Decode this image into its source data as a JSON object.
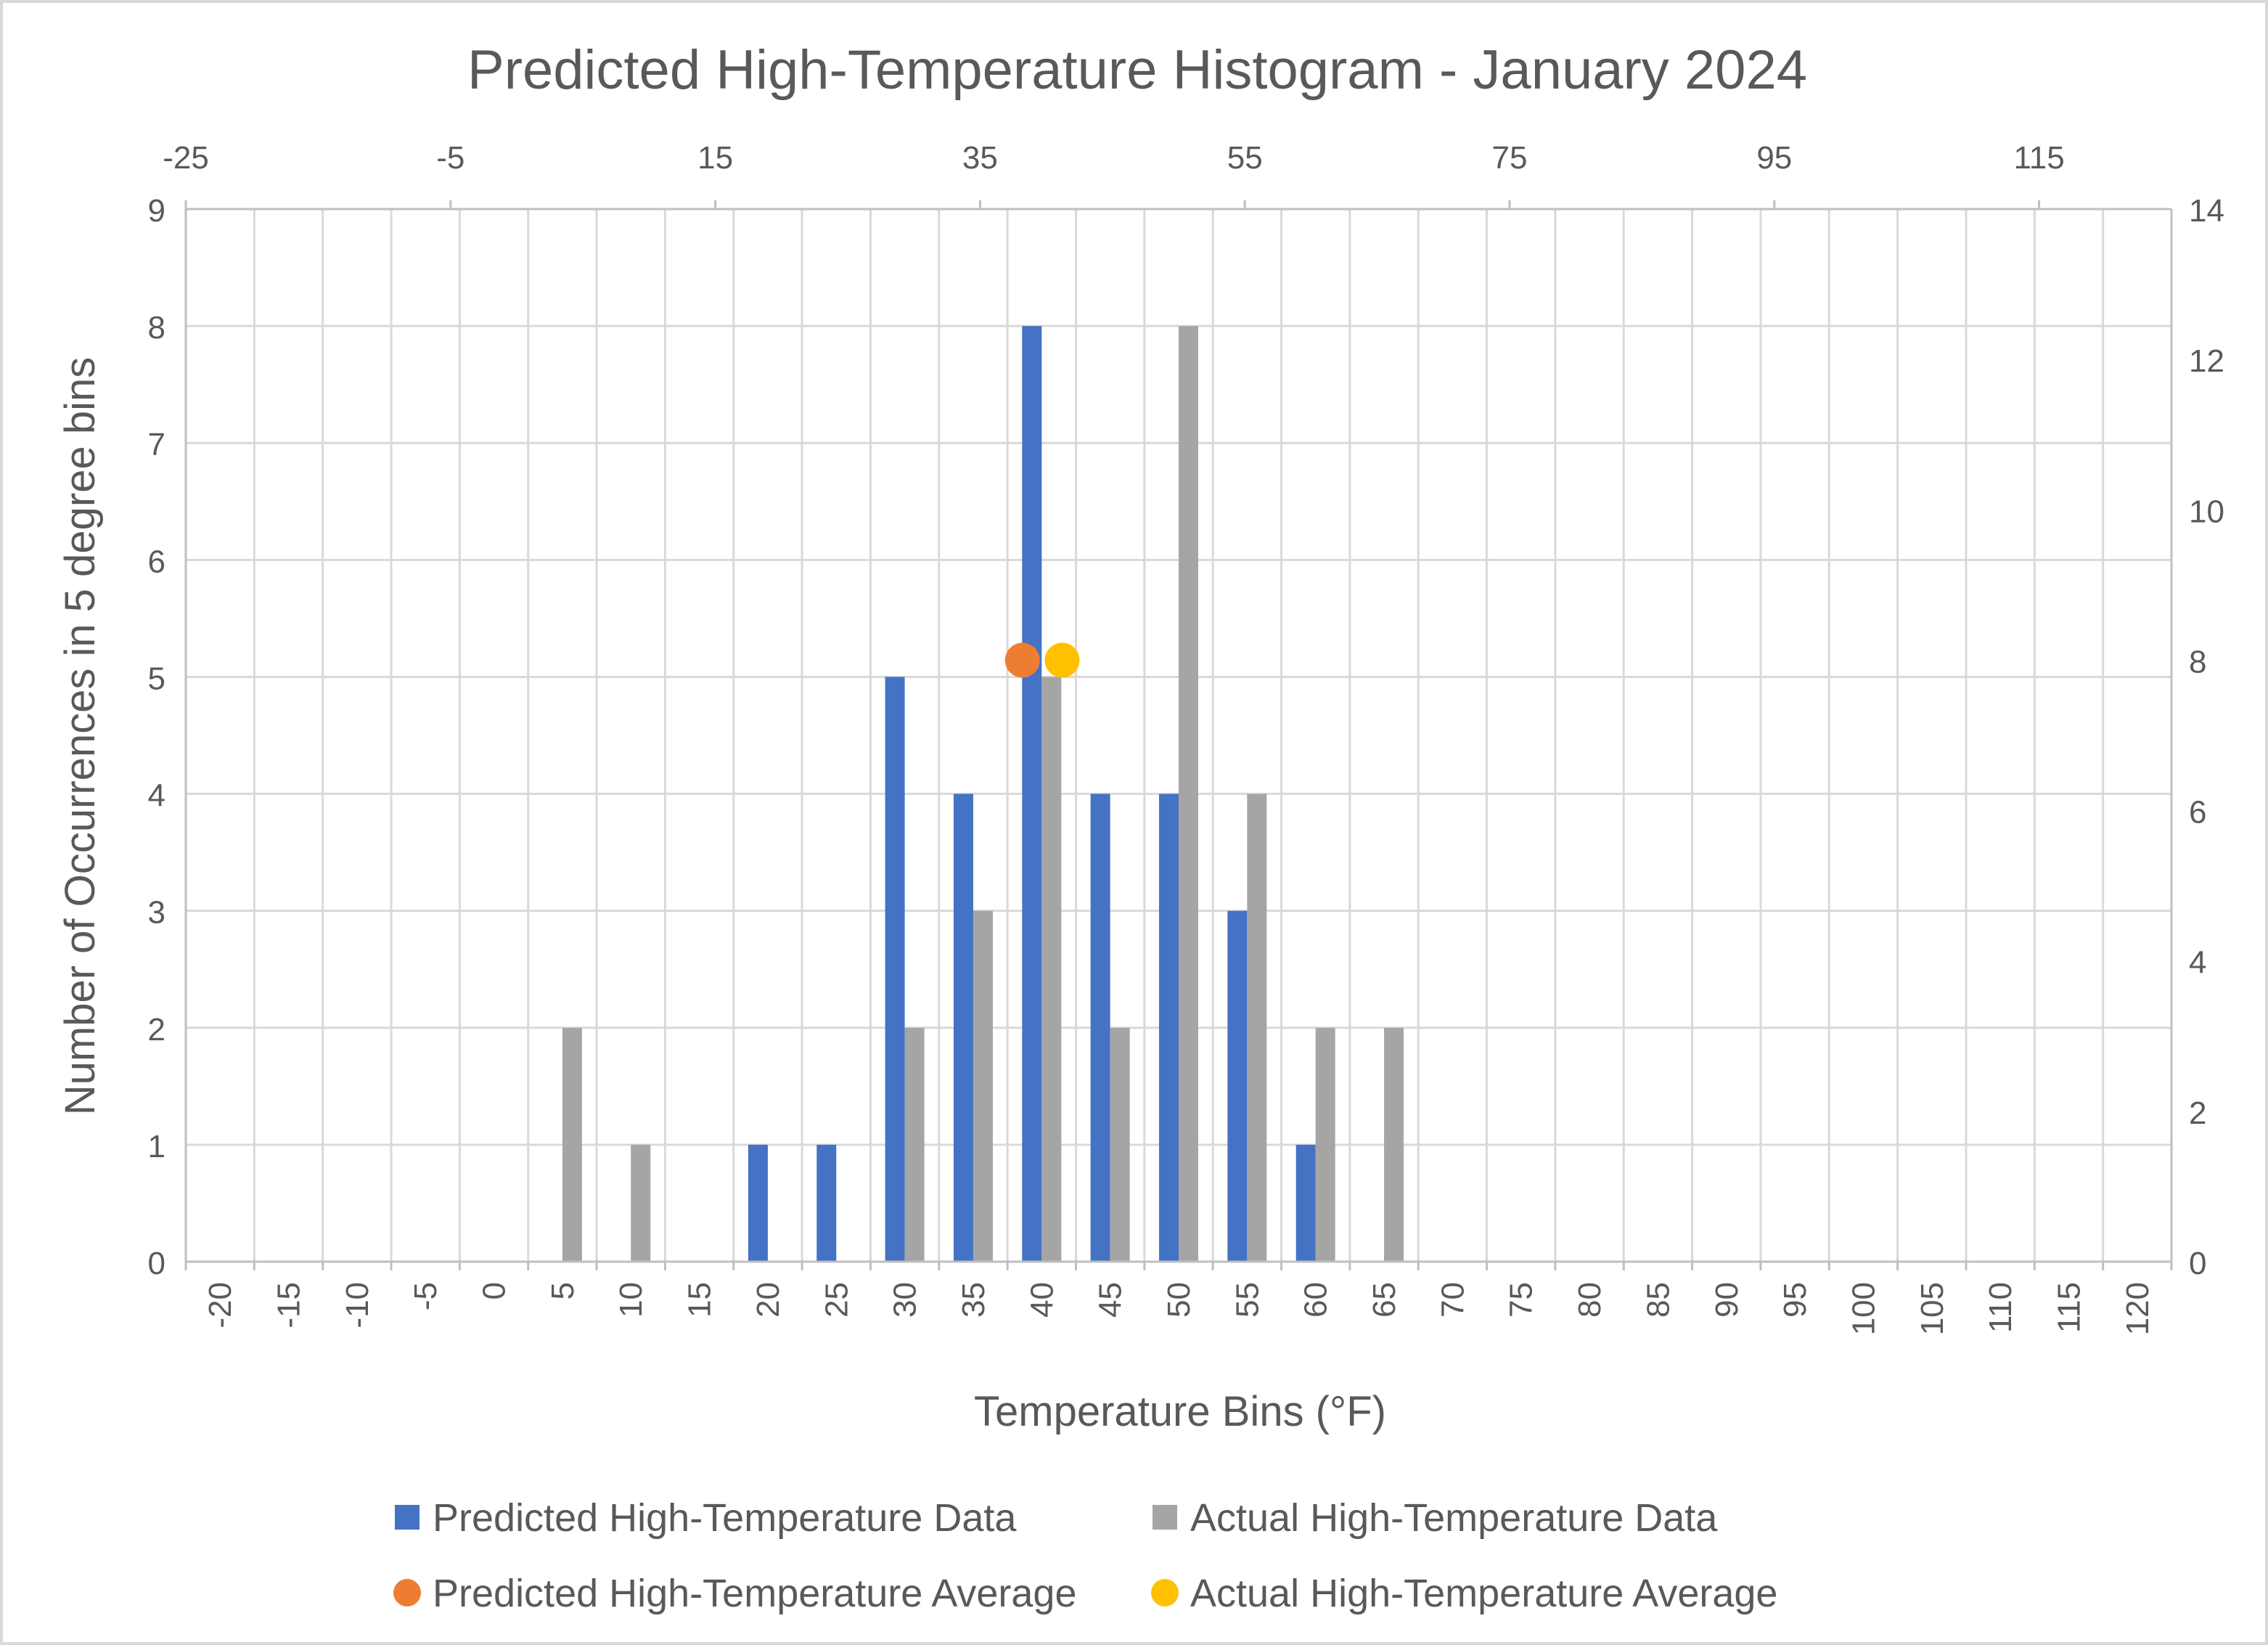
{
  "chart_data": {
    "type": "bar",
    "title": "Predicted High-Temperature Histogram - January 2024",
    "xlabel": "Temperature Bins (°F)",
    "ylabel": "Number of Occurrences in 5 degree bins",
    "categories": [
      "-20",
      "-15",
      "-10",
      "-5",
      "0",
      "5",
      "10",
      "15",
      "20",
      "25",
      "30",
      "35",
      "40",
      "45",
      "50",
      "55",
      "60",
      "65",
      "70",
      "75",
      "80",
      "85",
      "90",
      "95",
      "100",
      "105",
      "110",
      "115",
      "120"
    ],
    "series": [
      {
        "name": "Predicted High-Temperature Data",
        "color": "#4472c4",
        "values": [
          0,
          0,
          0,
          0,
          0,
          0,
          0,
          0,
          1,
          1,
          5,
          4,
          8,
          4,
          4,
          3,
          1,
          0,
          0,
          0,
          0,
          0,
          0,
          0,
          0,
          0,
          0,
          0,
          0
        ]
      },
      {
        "name": "Actual High-Temperature Data",
        "color": "#a5a5a5",
        "values": [
          0,
          0,
          0,
          0,
          0,
          2,
          1,
          0,
          0,
          0,
          2,
          3,
          5,
          2,
          8,
          4,
          2,
          2,
          0,
          0,
          0,
          0,
          0,
          0,
          0,
          0,
          0,
          0,
          0
        ]
      }
    ],
    "ylim": [
      0,
      9
    ],
    "yticks": [
      "0",
      "1",
      "2",
      "3",
      "4",
      "5",
      "6",
      "7",
      "8",
      "9"
    ],
    "secondary_x": {
      "range": [
        -25,
        125
      ],
      "ticks": [
        "-25",
        "-5",
        "15",
        "35",
        "55",
        "75",
        "95",
        "115"
      ]
    },
    "secondary_y": {
      "range": [
        0,
        14
      ],
      "ticks": [
        "0",
        "2",
        "4",
        "6",
        "8",
        "10",
        "12",
        "14"
      ]
    },
    "points": [
      {
        "name": "Predicted High-Temperature Average",
        "color": "#ed7d31",
        "x": 38.2,
        "y": 8
      },
      {
        "name": "Actual High-Temperature Average",
        "color": "#ffc000",
        "x": 41.2,
        "y": 8
      }
    ],
    "grid": true,
    "legend": "bottom"
  }
}
